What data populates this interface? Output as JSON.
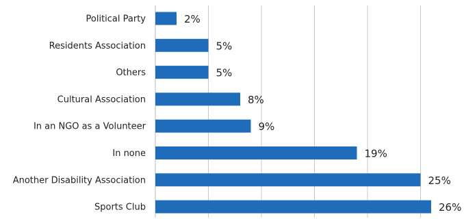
{
  "chart_data": {
    "type": "bar",
    "orientation": "horizontal",
    "categories": [
      "Political Party",
      "Residents Association",
      "Others",
      "Cultural Association",
      "In an NGO as a Volunteer",
      "In none",
      "Another Disability Association",
      "Sports Club"
    ],
    "values": [
      2,
      5,
      5,
      8,
      9,
      19,
      25,
      26
    ],
    "value_labels": [
      "2%",
      "5%",
      "5%",
      "8%",
      "9%",
      "19%",
      "25%",
      "26%"
    ],
    "xlim": [
      0,
      30
    ],
    "grid": "vertical",
    "legend": "none",
    "bar_color": "#1f6dba",
    "grid_color": "#c8c8c8"
  }
}
